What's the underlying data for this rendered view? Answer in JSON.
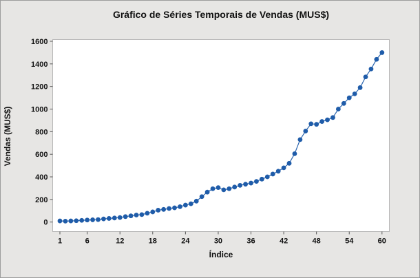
{
  "colors": {
    "figure_background": "#e7e6e4",
    "figure_border": "#9c9c9c",
    "plot_background": "#ffffff",
    "plot_frame": "#b8b8b8",
    "series_color": "#1f5ca9",
    "line_color": "#2b65ae",
    "tick_color": "#555555",
    "text_color": "#111111"
  },
  "chart_data": {
    "type": "line",
    "title": "Gráfico de Séries Temporais de Vendas (MUS$)",
    "xlabel": "Índice",
    "ylabel": "Vendas (MUS$)",
    "x_start": 1,
    "x": [
      1,
      2,
      3,
      4,
      5,
      6,
      7,
      8,
      9,
      10,
      11,
      12,
      13,
      14,
      15,
      16,
      17,
      18,
      19,
      20,
      21,
      22,
      23,
      24,
      25,
      26,
      27,
      28,
      29,
      30,
      31,
      32,
      33,
      34,
      35,
      36,
      37,
      38,
      39,
      40,
      41,
      42,
      43,
      44,
      45,
      46,
      47,
      48,
      49,
      50,
      51,
      52,
      53,
      54,
      55,
      56,
      57,
      58,
      59,
      60
    ],
    "values": [
      10,
      8,
      10,
      12,
      15,
      18,
      20,
      22,
      28,
      32,
      36,
      40,
      48,
      55,
      62,
      66,
      78,
      90,
      105,
      112,
      120,
      126,
      136,
      150,
      162,
      185,
      225,
      265,
      295,
      305,
      285,
      295,
      310,
      325,
      335,
      345,
      360,
      380,
      400,
      425,
      450,
      480,
      520,
      605,
      730,
      805,
      870,
      865,
      890,
      905,
      925,
      1000,
      1050,
      1100,
      1135,
      1190,
      1285,
      1355,
      1440,
      1500
    ],
    "x_ticks": [
      1,
      6,
      12,
      18,
      24,
      30,
      36,
      42,
      48,
      54,
      60
    ],
    "y_ticks": [
      0,
      200,
      400,
      600,
      800,
      1000,
      1200,
      1400,
      1600
    ],
    "xlim": [
      1,
      60
    ],
    "ylim": [
      0,
      1600
    ],
    "grid": false,
    "legend": false,
    "marker": "circle"
  }
}
